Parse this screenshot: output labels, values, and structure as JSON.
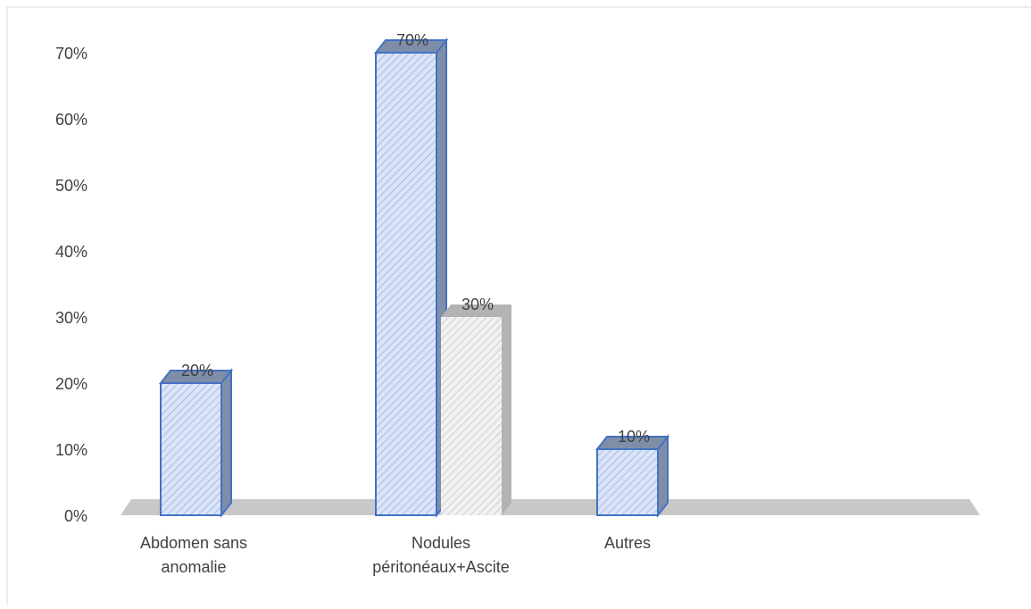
{
  "chart_data": {
    "type": "bar",
    "title": "",
    "xlabel": "",
    "ylabel": "",
    "categories": [
      "Abdomen sans anomalie",
      "Nodules péritonéaux+Ascite",
      "Autres"
    ],
    "category_lines": [
      [
        "Abdomen sans",
        "anomalie"
      ],
      [
        "Nodules",
        "péritonéaux+Ascite"
      ],
      [
        "Autres"
      ]
    ],
    "bars": [
      {
        "category": "Abdomen sans anomalie",
        "value": 20,
        "label": "20%",
        "fill_style": "blue-hatched"
      },
      {
        "category": "Nodules péritonéaux+Ascite",
        "value": 70,
        "label": "70%",
        "fill_style": "blue-hatched"
      },
      {
        "category": "Nodules péritonéaux+Ascite",
        "value": 30,
        "label": "30%",
        "fill_style": "gray-hatched"
      },
      {
        "category": "Autres",
        "value": 10,
        "label": "10%",
        "fill_style": "blue-hatched"
      }
    ],
    "ylim": [
      0,
      70
    ],
    "yticks": [
      "0%",
      "10%",
      "20%",
      "30%",
      "40%",
      "50%",
      "60%",
      "70%"
    ],
    "grid": false,
    "legend": "none",
    "colors": {
      "blue_fill": "#dbe5f8",
      "blue_hatch": "#a6bbe6",
      "blue_border": "#4472c4",
      "blue_top": "#7f8ea8",
      "gray_fill": "#f1f1f1",
      "gray_hatch": "#cfcfcf",
      "gray_top": "#b3b3b3",
      "floor": "#c8c8c8",
      "text": "#404040"
    }
  }
}
